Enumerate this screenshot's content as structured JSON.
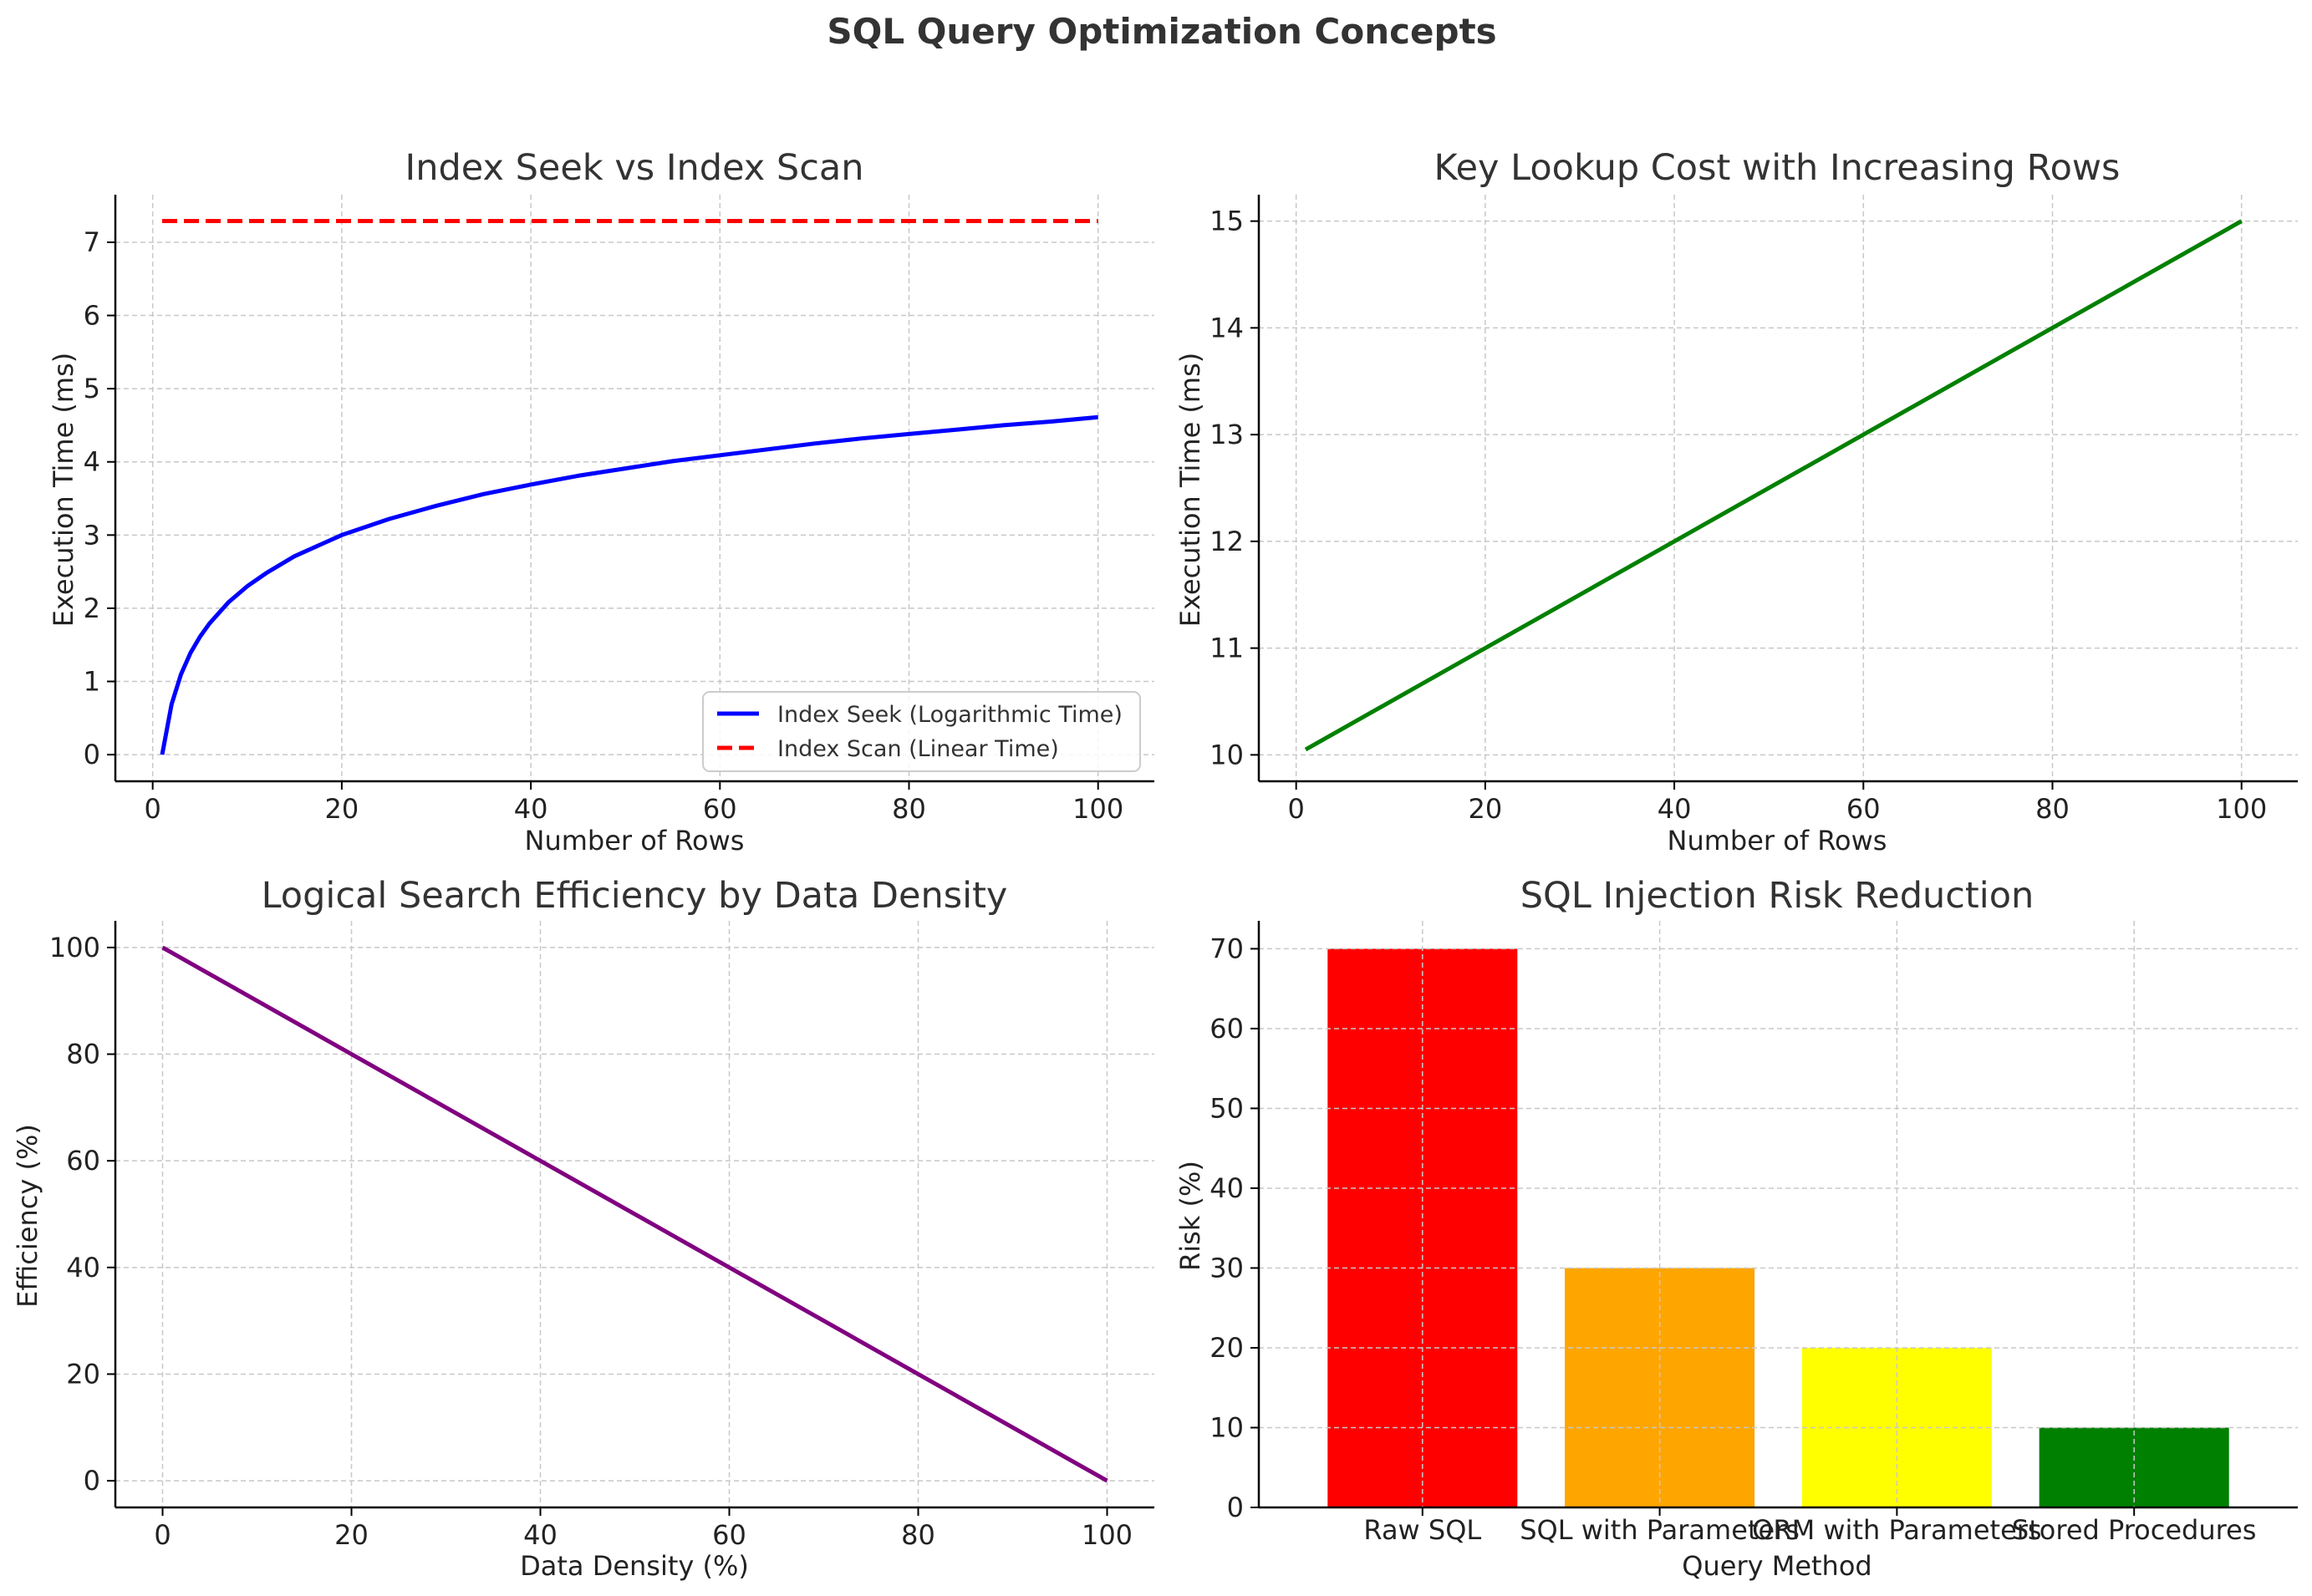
{
  "figure": {
    "title": "SQL Query Optimization Concepts"
  },
  "chart_data": [
    {
      "type": "line",
      "title": "Index Seek vs Index Scan",
      "xlabel": "Number of Rows",
      "ylabel": "Execution Time (ms)",
      "xlim": [
        -3.95,
        105.95
      ],
      "ylim": [
        -0.364,
        7.65
      ],
      "xticks": [
        0,
        20,
        40,
        60,
        80,
        100
      ],
      "yticks": [
        0,
        1,
        2,
        3,
        4,
        5,
        6,
        7
      ],
      "grid": true,
      "legend": "lower-right",
      "series": [
        {
          "name": "Index Seek (Logarithmic Time)",
          "color": "#0000ff",
          "style": "solid",
          "x": [
            1,
            2,
            3,
            4,
            5,
            6,
            8,
            10,
            12,
            15,
            20,
            25,
            30,
            35,
            40,
            45,
            50,
            55,
            60,
            65,
            70,
            75,
            80,
            85,
            90,
            95,
            100
          ],
          "y": [
            0,
            0.69,
            1.1,
            1.39,
            1.61,
            1.79,
            2.08,
            2.3,
            2.48,
            2.71,
            3.0,
            3.22,
            3.4,
            3.56,
            3.69,
            3.81,
            3.91,
            4.01,
            4.09,
            4.17,
            4.25,
            4.32,
            4.38,
            4.44,
            4.5,
            4.55,
            4.61
          ]
        },
        {
          "name": "Index Scan (Linear Time)",
          "color": "#ff0000",
          "style": "dashed",
          "x": [
            1,
            100
          ],
          "y": [
            7.29,
            7.29
          ]
        }
      ]
    },
    {
      "type": "line",
      "title": "Key Lookup Cost with Increasing Rows",
      "xlabel": "Number of Rows",
      "ylabel": "Execution Time (ms)",
      "xlim": [
        -3.95,
        105.95
      ],
      "ylim": [
        9.7525,
        15.2475
      ],
      "xticks": [
        0,
        20,
        40,
        60,
        80,
        100
      ],
      "yticks": [
        10,
        11,
        12,
        13,
        14,
        15
      ],
      "grid": true,
      "series": [
        {
          "name": "",
          "color": "#008000",
          "style": "solid",
          "x": [
            1,
            100
          ],
          "y": [
            10.05,
            15
          ]
        }
      ]
    },
    {
      "type": "line",
      "title": "Logical Search Efficiency by Data Density",
      "xlabel": "Data Density (%)",
      "ylabel": "Efficiency (%)",
      "xlim": [
        -5,
        105
      ],
      "ylim": [
        -5,
        105
      ],
      "xticks": [
        0,
        20,
        40,
        60,
        80,
        100
      ],
      "yticks": [
        0,
        20,
        40,
        60,
        80,
        100
      ],
      "grid": true,
      "series": [
        {
          "name": "",
          "color": "#800080",
          "style": "solid",
          "x": [
            0,
            100
          ],
          "y": [
            100,
            0
          ]
        }
      ]
    },
    {
      "type": "bar",
      "title": "SQL Injection Risk Reduction",
      "xlabel": "Query Method",
      "ylabel": "Risk (%)",
      "ylim": [
        0,
        73.5
      ],
      "yticks": [
        0,
        10,
        20,
        30,
        40,
        50,
        60,
        70
      ],
      "grid": true,
      "categories": [
        "Raw SQL",
        "SQL with Parameters",
        "ORM with Parameters",
        "Stored Procedures"
      ],
      "values": [
        70,
        30,
        20,
        10
      ],
      "colors": [
        "#ff0000",
        "#ffa500",
        "#ffff00",
        "#008000"
      ]
    }
  ]
}
